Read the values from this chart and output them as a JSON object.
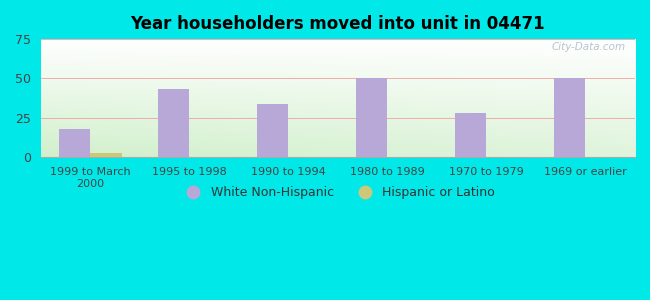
{
  "title": "Year householders moved into unit in 04471",
  "categories": [
    "1999 to March\n2000",
    "1995 to 1998",
    "1990 to 1994",
    "1980 to 1989",
    "1970 to 1979",
    "1969 or earlier"
  ],
  "white_non_hispanic": [
    18,
    43,
    34,
    50,
    28,
    50
  ],
  "hispanic_or_latino": [
    3,
    0,
    0,
    0,
    0,
    0
  ],
  "bar_color_white": "#b8a8d8",
  "bar_color_hispanic": "#ccc87a",
  "background_outer": "#00e8e8",
  "grad_color_top": "#f0fbf0",
  "grad_color_bottom": "#d8f0d0",
  "ylim": [
    0,
    75
  ],
  "yticks": [
    0,
    25,
    50,
    75
  ],
  "bar_width": 0.32,
  "legend_white_label": "White Non-Hispanic",
  "legend_hispanic_label": "Hispanic or Latino",
  "watermark": "City-Data.com",
  "grid_color": "#f0a0a0",
  "spine_color": "#aaaaaa"
}
